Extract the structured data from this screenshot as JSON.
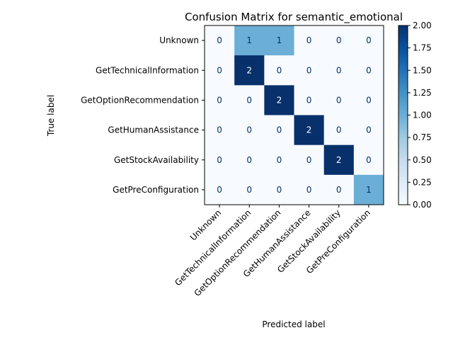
{
  "chart_data": {
    "type": "heatmap",
    "title": "Confusion Matrix for semantic_emotional",
    "xlabel": "Predicted label",
    "ylabel": "True label",
    "x_categories": [
      "Unknown",
      "GetTechnicalInformation",
      "GetOptionRecommendation",
      "GetHumanAssistance",
      "GetStockAvailability",
      "GetPreConfiguration"
    ],
    "y_categories": [
      "Unknown",
      "GetTechnicalInformation",
      "GetOptionRecommendation",
      "GetHumanAssistance",
      "GetStockAvailability",
      "GetPreConfiguration"
    ],
    "values": [
      [
        0,
        1,
        1,
        0,
        0,
        0
      ],
      [
        0,
        2,
        0,
        0,
        0,
        0
      ],
      [
        0,
        0,
        2,
        0,
        0,
        0
      ],
      [
        0,
        0,
        0,
        2,
        0,
        0
      ],
      [
        0,
        0,
        0,
        0,
        2,
        0
      ],
      [
        0,
        0,
        0,
        0,
        0,
        1
      ]
    ],
    "colormap": "Blues",
    "vmin": 0,
    "vmax": 2,
    "colorbar_ticks": [
      "0.00",
      "0.25",
      "0.50",
      "0.75",
      "1.00",
      "1.25",
      "1.50",
      "1.75",
      "2.00"
    ],
    "colors": {
      "low": "#f7fbff",
      "mid": "#6baed6",
      "high": "#08306b",
      "text_dark": "#08306b",
      "text_light": "#ffffff"
    }
  }
}
